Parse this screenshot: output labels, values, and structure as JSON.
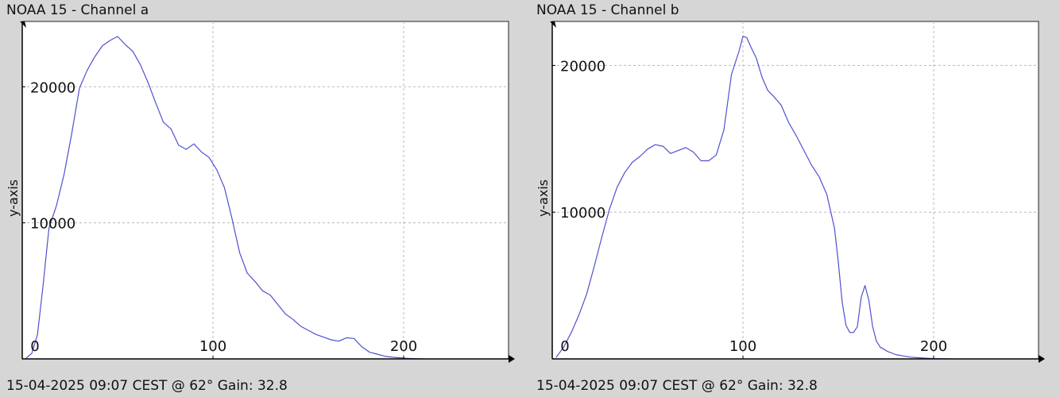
{
  "charts": [
    {
      "title": "NOAA 15 - Channel a",
      "footer": "15-04-2025 09:07 CEST @ 62° Gain: 32.8",
      "ylabel": "y-axis",
      "x_ticks": [
        "0",
        "100",
        "200"
      ],
      "y_ticks": [
        "10000",
        "20000"
      ]
    },
    {
      "title": "NOAA 15 - Channel b",
      "footer": "15-04-2025 09:07 CEST @ 62° Gain: 32.8",
      "ylabel": "y-axis",
      "x_ticks": [
        "0",
        "100",
        "200"
      ],
      "y_ticks": [
        "10000",
        "20000"
      ]
    }
  ],
  "chart_data": [
    {
      "type": "line",
      "title": "NOAA 15 - Channel a",
      "xlabel": "",
      "ylabel": "y-axis",
      "xlim": [
        0,
        255
      ],
      "ylim": [
        0,
        24800
      ],
      "grid": true,
      "line_color": "#5050d0",
      "x_ticks": [
        0,
        100,
        200
      ],
      "y_ticks": [
        10000,
        20000
      ],
      "series": [
        {
          "x": [
            2,
            5,
            8,
            11,
            14,
            18,
            22,
            26,
            30,
            34,
            38,
            42,
            46,
            50,
            54,
            58,
            62,
            66,
            70,
            74,
            78,
            82,
            86,
            90,
            94,
            98,
            102,
            106,
            110,
            114,
            118,
            122,
            126,
            130,
            134,
            138,
            142,
            146,
            150,
            154,
            158,
            162,
            166,
            170,
            174,
            178,
            182,
            186,
            190,
            194,
            198,
            202,
            206,
            210
          ],
          "y": [
            50,
            400,
            1800,
            5500,
            9600,
            11300,
            13600,
            16600,
            19900,
            21200,
            22200,
            23000,
            23400,
            23700,
            23100,
            22600,
            21600,
            20300,
            18800,
            17400,
            16900,
            15700,
            15400,
            15800,
            15200,
            14800,
            13900,
            12600,
            10300,
            7800,
            6300,
            5700,
            5000,
            4700,
            4000,
            3300,
            2900,
            2400,
            2100,
            1800,
            1600,
            1400,
            1300,
            1550,
            1500,
            900,
            500,
            350,
            200,
            120,
            80,
            40,
            15,
            0
          ]
        }
      ]
    },
    {
      "type": "line",
      "title": "NOAA 15 - Channel b",
      "xlabel": "",
      "ylabel": "y-axis",
      "xlim": [
        0,
        255
      ],
      "ylim": [
        0,
        23000
      ],
      "grid": true,
      "line_color": "#5050d0",
      "x_ticks": [
        0,
        100,
        200
      ],
      "y_ticks": [
        10000,
        20000
      ],
      "series": [
        {
          "x": [
            2,
            6,
            10,
            14,
            18,
            22,
            26,
            30,
            34,
            38,
            42,
            46,
            50,
            54,
            58,
            62,
            66,
            70,
            74,
            78,
            82,
            86,
            90,
            94,
            98,
            100,
            102,
            104,
            107,
            110,
            113,
            116,
            120,
            124,
            128,
            132,
            136,
            140,
            144,
            148,
            150,
            152,
            154,
            156,
            158,
            160,
            162,
            164,
            166,
            168,
            170,
            172,
            176,
            180,
            184,
            188,
            192,
            196,
            200,
            204,
            208
          ],
          "y": [
            100,
            800,
            1800,
            3000,
            4400,
            6300,
            8300,
            10200,
            11700,
            12700,
            13400,
            13800,
            14300,
            14600,
            14500,
            14000,
            14200,
            14400,
            14100,
            13500,
            13500,
            13900,
            15600,
            19400,
            21000,
            22000,
            21900,
            21300,
            20500,
            19200,
            18300,
            17900,
            17300,
            16100,
            15200,
            14200,
            13200,
            12400,
            11200,
            8900,
            6600,
            3900,
            2300,
            1800,
            1800,
            2200,
            4200,
            5000,
            4000,
            2200,
            1200,
            800,
            500,
            300,
            200,
            120,
            80,
            50,
            20,
            10,
            0
          ]
        }
      ]
    }
  ]
}
